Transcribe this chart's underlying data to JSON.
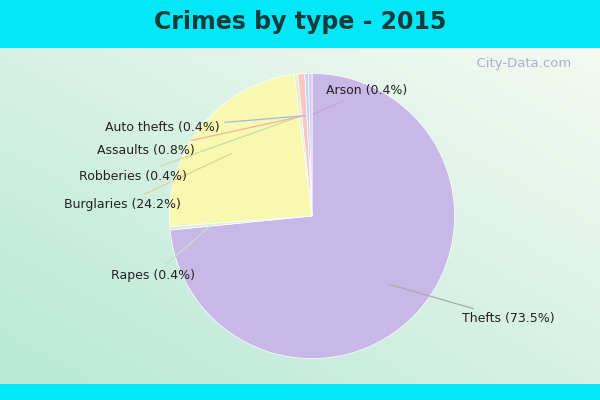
{
  "title": "Crimes by type - 2015",
  "slices": [
    {
      "label": "Thefts (73.5%)",
      "value": 73.5,
      "color": "#c8b8e8"
    },
    {
      "label": "Rapes (0.4%)",
      "value": 0.4,
      "color": "#ddeedd"
    },
    {
      "label": "Burglaries (24.2%)",
      "value": 24.2,
      "color": "#f8f8b0"
    },
    {
      "label": "Robberies (0.4%)",
      "value": 0.4,
      "color": "#e8f0c0"
    },
    {
      "label": "Assaults (0.8%)",
      "value": 0.8,
      "color": "#f8c8c0"
    },
    {
      "label": "Auto thefts (0.4%)",
      "value": 0.4,
      "color": "#c0d0f8"
    },
    {
      "label": "Arson (0.4%)",
      "value": 0.4,
      "color": "#d8c8f0"
    }
  ],
  "title_fontsize": 17,
  "label_fontsize": 9,
  "top_bar_color": "#00e8f8",
  "bg_color_topleft": "#b8e8d8",
  "bg_color_bottomright": "#e8f4ee",
  "watermark": "  City-Data.com",
  "startangle": 90,
  "line_colors": [
    "#aaaaaa",
    "#c8ddc8",
    "#d8d890",
    "#c8dda0",
    "#f0b0a0",
    "#a0b8e8",
    "#c0a8d8"
  ]
}
